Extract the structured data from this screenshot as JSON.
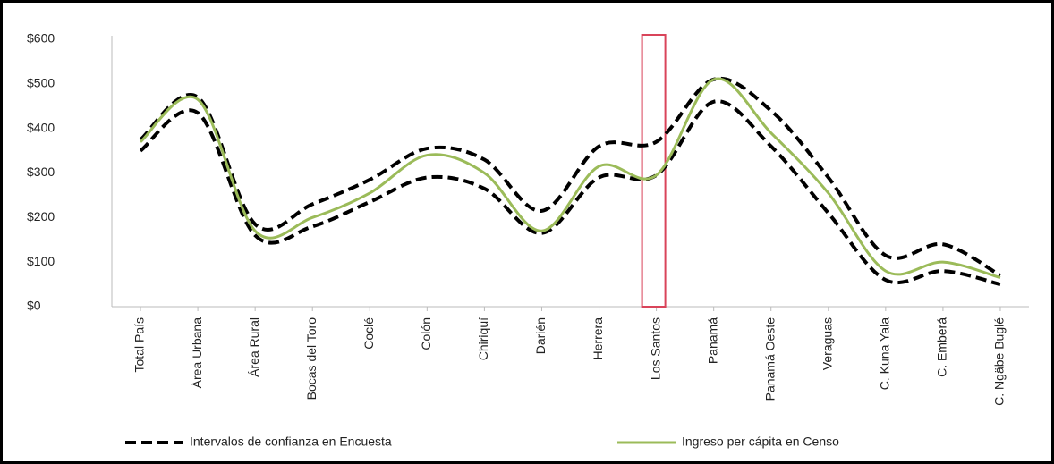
{
  "chart_data": {
    "type": "line",
    "categories": [
      "Total País",
      "Área Urbana",
      "Área Rural",
      "Bocas del Toro",
      "Coclé",
      "Colón",
      "Chiriquí",
      "Darién",
      "Herrera",
      "Los Santos",
      "Panamá",
      "Panamá Oeste",
      "Veraguas",
      "C. Kuna Yala",
      "C. Emberá",
      "C. Ngäbe Buglé"
    ],
    "series": [
      {
        "name": "Intervalos de confianza en Encuesta",
        "color": "#000000",
        "dash": true,
        "values": [
          375,
          470,
          185,
          230,
          285,
          355,
          330,
          215,
          360,
          370,
          510,
          440,
          290,
          115,
          140,
          70
        ]
      },
      {
        "color": "#000000",
        "dash": true,
        "values": [
          350,
          435,
          160,
          180,
          235,
          290,
          265,
          165,
          290,
          295,
          460,
          360,
          210,
          60,
          80,
          50
        ]
      },
      {
        "name": "Ingreso per cápita en Censo",
        "color": "#9bbb59",
        "dash": false,
        "values": [
          370,
          465,
          170,
          200,
          255,
          340,
          300,
          170,
          315,
          295,
          510,
          390,
          255,
          80,
          100,
          65
        ]
      }
    ],
    "ylim": [
      0,
      600
    ],
    "yticks": [
      {
        "value": 0,
        "label": "$0"
      },
      {
        "value": 100,
        "label": "$100"
      },
      {
        "value": 200,
        "label": "$200"
      },
      {
        "value": 300,
        "label": "$300"
      },
      {
        "value": 400,
        "label": "$400"
      },
      {
        "value": 500,
        "label": "$500"
      },
      {
        "value": 600,
        "label": "$600"
      }
    ],
    "grid": false,
    "legend": "bottom"
  }
}
